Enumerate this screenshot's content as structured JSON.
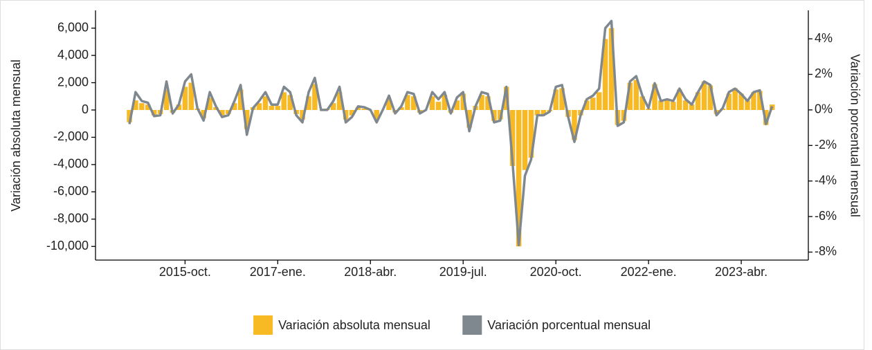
{
  "chart_data": {
    "type": "bar",
    "categories": [
      null,
      null,
      null,
      null,
      null,
      null,
      null,
      null,
      null,
      "2015-oct.",
      null,
      null,
      null,
      null,
      null,
      null,
      null,
      null,
      null,
      null,
      null,
      null,
      null,
      null,
      "2017-ene.",
      null,
      null,
      null,
      null,
      null,
      null,
      null,
      null,
      null,
      null,
      null,
      null,
      null,
      null,
      "2018-abr.",
      null,
      null,
      null,
      null,
      null,
      null,
      null,
      null,
      null,
      null,
      null,
      null,
      null,
      null,
      "2019-jul.",
      null,
      null,
      null,
      null,
      null,
      null,
      null,
      null,
      null,
      null,
      null,
      null,
      null,
      null,
      "2020-oct.",
      null,
      null,
      null,
      null,
      null,
      null,
      null,
      null,
      null,
      null,
      null,
      null,
      null,
      null,
      "2022-ene.",
      null,
      null,
      null,
      null,
      null,
      null,
      null,
      null,
      null,
      null,
      null,
      null,
      null,
      null,
      "2023-abr.",
      null,
      null,
      null,
      null,
      null
    ],
    "series": [
      {
        "name": "Variación absoluta mensual",
        "color": "#f7b924",
        "values": [
          -900,
          700,
          500,
          400,
          -400,
          -300,
          1500,
          -200,
          400,
          1700,
          2000,
          100,
          -600,
          900,
          200,
          -400,
          -300,
          500,
          1500,
          -1400,
          200,
          500,
          1000,
          300,
          300,
          1300,
          1100,
          -300,
          -700,
          1000,
          1900,
          0,
          100,
          500,
          1300,
          -700,
          -400,
          200,
          100,
          0,
          -700,
          0,
          800,
          -200,
          200,
          1100,
          1000,
          -200,
          0,
          1000,
          600,
          1100,
          -200,
          700,
          1200,
          -1300,
          300,
          1100,
          1000,
          -800,
          -700,
          1700,
          -4100,
          -10000,
          -4400,
          -3500,
          -400,
          -300,
          -100,
          1500,
          1600,
          -500,
          -2200,
          -400,
          700,
          900,
          1300,
          5200,
          6000,
          -1100,
          -800,
          2000,
          2200,
          1000,
          100,
          1900,
          700,
          700,
          600,
          1500,
          700,
          400,
          1300,
          2100,
          1800,
          -300,
          100,
          1200,
          1600,
          1200,
          700,
          1300,
          1400,
          -1100,
          400
        ]
      },
      {
        "name": "Variación porcentual mensual",
        "color": "#7f878f",
        "type": "line",
        "axis": "y2",
        "values": [
          -0.8,
          1.0,
          0.5,
          0.4,
          -0.35,
          -0.3,
          1.6,
          -0.2,
          0.3,
          1.6,
          2.0,
          0.1,
          -0.6,
          1.0,
          0.2,
          -0.4,
          -0.3,
          0.5,
          1.4,
          -1.4,
          0.1,
          0.5,
          1.0,
          0.3,
          0.3,
          1.3,
          1.0,
          -0.3,
          -0.7,
          1.0,
          1.8,
          0.0,
          0.0,
          0.5,
          1.3,
          -0.7,
          -0.4,
          0.2,
          0.15,
          0.0,
          -0.7,
          0.0,
          0.8,
          -0.2,
          0.2,
          1.0,
          0.9,
          -0.2,
          0.0,
          1.0,
          0.6,
          1.0,
          -0.2,
          0.7,
          1.0,
          -1.2,
          0.2,
          1.0,
          0.9,
          -0.7,
          -0.6,
          1.3,
          -3.0,
          -7.6,
          -3.7,
          -2.8,
          -0.3,
          -0.3,
          -0.1,
          1.3,
          1.4,
          -0.4,
          -1.8,
          -0.3,
          0.6,
          0.8,
          1.2,
          4.6,
          5.0,
          -0.9,
          -0.7,
          1.6,
          1.9,
          0.8,
          0.1,
          1.5,
          0.5,
          0.6,
          0.5,
          1.2,
          0.6,
          0.3,
          1.0,
          1.6,
          1.4,
          -0.3,
          0.1,
          1.0,
          1.2,
          0.9,
          0.5,
          1.0,
          1.1,
          -0.8,
          0.2
        ]
      }
    ],
    "y_label": "Variación absoluta mensual",
    "y2_label": "Variación porcentual mensual",
    "ylim": [
      -11000,
      7300
    ],
    "yticks": [
      {
        "value": -10000,
        "label": "-10,000"
      },
      {
        "value": -8000,
        "label": "-8,000"
      },
      {
        "value": -6000,
        "label": "-6,000"
      },
      {
        "value": -4000,
        "label": "-4,000"
      },
      {
        "value": -2000,
        "label": "-2,000"
      },
      0,
      {
        "value": 2000,
        "label": "2,000"
      },
      {
        "value": 4000,
        "label": "4,000"
      },
      {
        "value": 6000,
        "label": "6,000"
      }
    ],
    "y2lim": [
      -8.45,
      5.6
    ],
    "y2ticks": [
      {
        "value": -8,
        "label": "-8%"
      },
      {
        "value": -6,
        "label": "-6%"
      },
      {
        "value": -4,
        "label": "-4%"
      },
      {
        "value": -2,
        "label": "-2%"
      },
      {
        "value": 0,
        "label": "0%"
      },
      {
        "value": 2,
        "label": "2%"
      },
      {
        "value": 4,
        "label": "4%"
      }
    ],
    "legend": "bottom"
  }
}
